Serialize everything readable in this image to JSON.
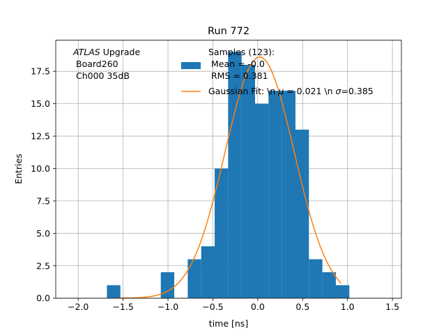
{
  "chart_data": {
    "type": "bar",
    "title": "Run 772",
    "xlabel": "time [ns]",
    "ylabel": "Entries",
    "xlim": [
      -2.25,
      1.6
    ],
    "ylim": [
      0,
      19.9
    ],
    "grid": true,
    "xticks": [
      -2.0,
      -1.5,
      -1.0,
      -0.5,
      0.0,
      0.5,
      1.0,
      1.5
    ],
    "xtick_labels": [
      "−2.0",
      "−1.5",
      "−1.0",
      "−0.5",
      "0.0",
      "0.5",
      "1.0",
      "1.5"
    ],
    "yticks": [
      0,
      2.5,
      5,
      7.5,
      10,
      12.5,
      15,
      17.5
    ],
    "ytick_labels": [
      "0.0",
      "2.5",
      "5.0",
      "7.5",
      "10.0",
      "12.5",
      "15.0",
      "17.5"
    ],
    "annotation": {
      "italic": "ATLAS",
      "rest": " Upgrade",
      "line2": "Board260",
      "line3": "Ch000 35dB"
    },
    "histogram": {
      "name": "Samples (123):",
      "color": "#1f77b4",
      "bin_edges": [
        -1.68,
        -1.53,
        -1.38,
        -1.08,
        -0.93,
        -0.78,
        -0.63,
        -0.48,
        -0.33,
        -0.18,
        -0.03,
        0.12,
        0.27,
        0.42,
        0.57,
        0.72,
        0.87,
        1.02
      ],
      "counts": [
        1,
        0,
        0,
        2,
        0,
        3,
        4,
        10,
        19,
        18,
        15,
        16,
        16,
        13,
        3,
        2,
        1
      ]
    },
    "fit": {
      "color": "#ff7f0e",
      "amplitude": 18.6,
      "mu": 0.021,
      "sigma": 0.385,
      "x_range": [
        -1.55,
        0.93
      ]
    },
    "legend": {
      "location": "top-right",
      "entries": [
        {
          "line1": "Samples (123):",
          "line2": " Mean = -0.0",
          "line3": " RMS = 0.381"
        },
        {
          "prefix": "Gaussian Fit: \\n ",
          "mu_symbol": "μ",
          "mid": " = 0.021 \\n ",
          "sigma_symbol": "σ",
          "suffix": "=0.385"
        }
      ]
    }
  }
}
